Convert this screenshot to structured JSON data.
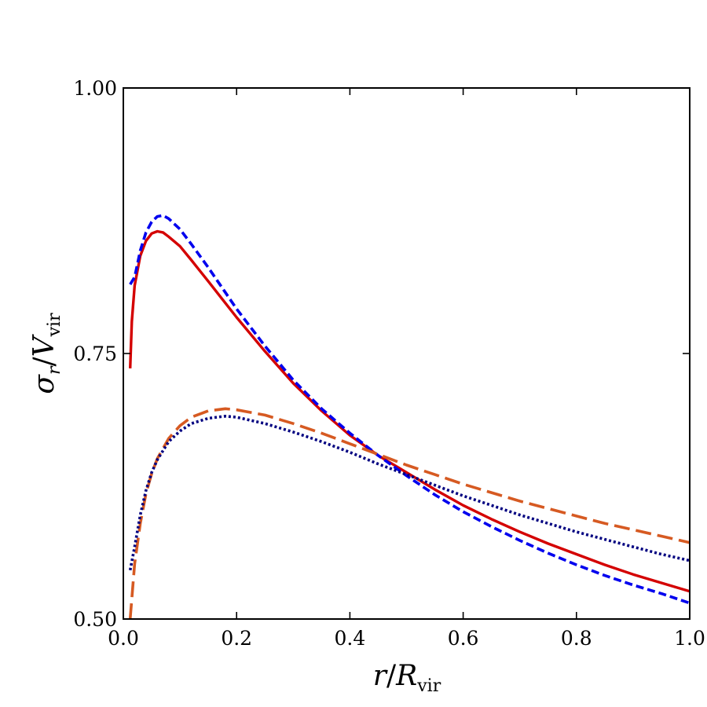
{
  "chart_data": {
    "type": "line",
    "title": "",
    "xlabel": "r/R_vir",
    "ylabel": "σ_r/V_vir",
    "xlim": [
      0.0,
      1.0
    ],
    "ylim": [
      0.5,
      1.0
    ],
    "x_ticks": [
      "0.0",
      "0.2",
      "0.4",
      "0.6",
      "0.8",
      "1.0"
    ],
    "y_ticks": [
      "0.50",
      "0.75",
      "1.00"
    ],
    "grid": false,
    "legend": "none",
    "series": [
      {
        "style": "solid",
        "color": "#d40000",
        "points": [
          [
            0.012,
            0.736
          ],
          [
            0.015,
            0.78
          ],
          [
            0.02,
            0.814
          ],
          [
            0.03,
            0.842
          ],
          [
            0.04,
            0.856
          ],
          [
            0.05,
            0.863
          ],
          [
            0.06,
            0.865
          ],
          [
            0.07,
            0.864
          ],
          [
            0.08,
            0.86
          ],
          [
            0.1,
            0.851
          ],
          [
            0.12,
            0.838
          ],
          [
            0.15,
            0.818
          ],
          [
            0.2,
            0.784
          ],
          [
            0.25,
            0.752
          ],
          [
            0.3,
            0.722
          ],
          [
            0.35,
            0.696
          ],
          [
            0.4,
            0.673
          ],
          [
            0.45,
            0.654
          ],
          [
            0.5,
            0.638
          ],
          [
            0.55,
            0.622
          ],
          [
            0.6,
            0.607
          ],
          [
            0.65,
            0.594
          ],
          [
            0.7,
            0.582
          ],
          [
            0.75,
            0.571
          ],
          [
            0.8,
            0.561
          ],
          [
            0.85,
            0.551
          ],
          [
            0.9,
            0.542
          ],
          [
            0.95,
            0.534
          ],
          [
            1.0,
            0.526
          ]
        ]
      },
      {
        "style": "dashed",
        "color": "#0000ee",
        "points": [
          [
            0.012,
            0.815
          ],
          [
            0.02,
            0.822
          ],
          [
            0.03,
            0.847
          ],
          [
            0.04,
            0.864
          ],
          [
            0.05,
            0.874
          ],
          [
            0.06,
            0.879
          ],
          [
            0.07,
            0.88
          ],
          [
            0.08,
            0.877
          ],
          [
            0.1,
            0.867
          ],
          [
            0.12,
            0.853
          ],
          [
            0.15,
            0.831
          ],
          [
            0.2,
            0.792
          ],
          [
            0.25,
            0.757
          ],
          [
            0.3,
            0.725
          ],
          [
            0.35,
            0.698
          ],
          [
            0.4,
            0.675
          ],
          [
            0.45,
            0.654
          ],
          [
            0.5,
            0.635
          ],
          [
            0.55,
            0.617
          ],
          [
            0.6,
            0.601
          ],
          [
            0.65,
            0.587
          ],
          [
            0.7,
            0.574
          ],
          [
            0.75,
            0.562
          ],
          [
            0.8,
            0.551
          ],
          [
            0.85,
            0.541
          ],
          [
            0.9,
            0.532
          ],
          [
            0.95,
            0.524
          ],
          [
            1.0,
            0.515
          ]
        ]
      },
      {
        "style": "long-dashed",
        "color": "#d65a22",
        "points": [
          [
            0.012,
            0.5
          ],
          [
            0.02,
            0.552
          ],
          [
            0.03,
            0.59
          ],
          [
            0.04,
            0.618
          ],
          [
            0.05,
            0.637
          ],
          [
            0.06,
            0.651
          ],
          [
            0.08,
            0.67
          ],
          [
            0.1,
            0.682
          ],
          [
            0.12,
            0.69
          ],
          [
            0.15,
            0.696
          ],
          [
            0.18,
            0.698
          ],
          [
            0.2,
            0.697
          ],
          [
            0.25,
            0.692
          ],
          [
            0.3,
            0.684
          ],
          [
            0.35,
            0.675
          ],
          [
            0.4,
            0.665
          ],
          [
            0.45,
            0.655
          ],
          [
            0.5,
            0.645
          ],
          [
            0.55,
            0.636
          ],
          [
            0.6,
            0.627
          ],
          [
            0.65,
            0.619
          ],
          [
            0.7,
            0.611
          ],
          [
            0.75,
            0.604
          ],
          [
            0.8,
            0.597
          ],
          [
            0.85,
            0.59
          ],
          [
            0.9,
            0.584
          ],
          [
            0.95,
            0.578
          ],
          [
            1.0,
            0.572
          ]
        ]
      },
      {
        "style": "dotted",
        "color": "#000080",
        "points": [
          [
            0.012,
            0.546
          ],
          [
            0.02,
            0.568
          ],
          [
            0.03,
            0.598
          ],
          [
            0.04,
            0.621
          ],
          [
            0.05,
            0.638
          ],
          [
            0.06,
            0.65
          ],
          [
            0.08,
            0.667
          ],
          [
            0.1,
            0.677
          ],
          [
            0.12,
            0.684
          ],
          [
            0.15,
            0.689
          ],
          [
            0.18,
            0.691
          ],
          [
            0.2,
            0.69
          ],
          [
            0.25,
            0.684
          ],
          [
            0.3,
            0.676
          ],
          [
            0.35,
            0.667
          ],
          [
            0.4,
            0.657
          ],
          [
            0.45,
            0.646
          ],
          [
            0.5,
            0.636
          ],
          [
            0.55,
            0.626
          ],
          [
            0.6,
            0.616
          ],
          [
            0.65,
            0.607
          ],
          [
            0.7,
            0.598
          ],
          [
            0.75,
            0.59
          ],
          [
            0.8,
            0.582
          ],
          [
            0.85,
            0.575
          ],
          [
            0.9,
            0.568
          ],
          [
            0.95,
            0.561
          ],
          [
            1.0,
            0.555
          ]
        ]
      }
    ]
  }
}
